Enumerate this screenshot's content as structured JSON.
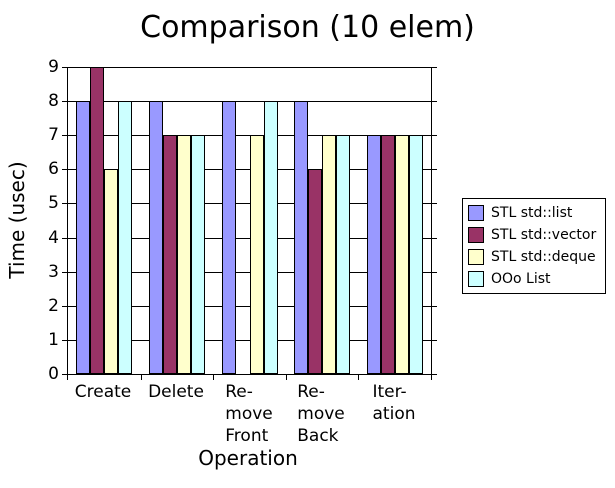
{
  "chart_data": {
    "type": "bar",
    "title": "Comparison (10 elem)",
    "xlabel": "Operation",
    "ylabel": "Time (usec)",
    "ylim": [
      0,
      9
    ],
    "ytick_interval": 1,
    "grid": "horizontal",
    "legend_position": "right",
    "background_color": "#FFFFFF",
    "axis_color": "#000000",
    "bar_border_color": "#000000",
    "categories": [
      "Create",
      "Delete",
      "Remove Front",
      "Remove Back",
      "Iteration"
    ],
    "category_label_lines": [
      [
        "Create"
      ],
      [
        "Delete"
      ],
      [
        "Re-",
        "move",
        "Front"
      ],
      [
        "Re-",
        "move",
        "Back"
      ],
      [
        "Iter-",
        "ation"
      ]
    ],
    "series": [
      {
        "name": "STL std::list",
        "color": "#9999FF",
        "values": [
          8,
          8,
          8,
          8,
          7
        ]
      },
      {
        "name": "STL std::vector",
        "color": "#993366",
        "values": [
          9,
          7,
          0,
          6,
          7
        ]
      },
      {
        "name": "STL std::deque",
        "color": "#FFFFCC",
        "values": [
          6,
          7,
          7,
          7,
          7
        ]
      },
      {
        "name": "OOo List",
        "color": "#CCFFFF",
        "values": [
          8,
          7,
          8,
          7,
          7
        ]
      }
    ]
  }
}
